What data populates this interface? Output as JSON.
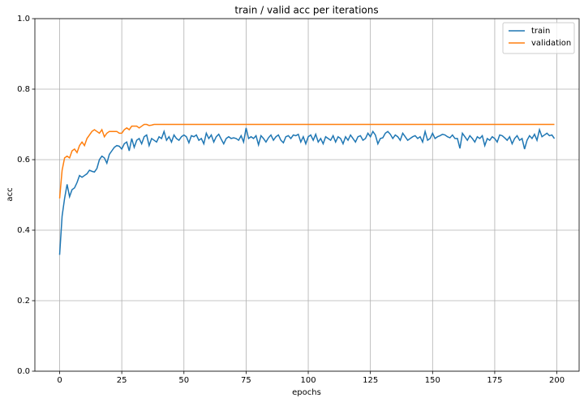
{
  "chart_data": {
    "type": "line",
    "title": "train / valid acc per iterations",
    "xlabel": "epochs",
    "ylabel": "acc",
    "x": [
      0,
      1,
      2,
      3,
      4,
      5,
      6,
      7,
      8,
      9,
      10,
      11,
      12,
      13,
      14,
      15,
      16,
      17,
      18,
      19,
      20,
      21,
      22,
      23,
      24,
      25,
      26,
      27,
      28,
      29,
      30,
      31,
      32,
      33,
      34,
      35,
      36,
      37,
      38,
      39,
      40,
      41,
      42,
      43,
      44,
      45,
      46,
      47,
      48,
      49,
      50,
      51,
      52,
      53,
      54,
      55,
      56,
      57,
      58,
      59,
      60,
      61,
      62,
      63,
      64,
      65,
      66,
      67,
      68,
      69,
      70,
      71,
      72,
      73,
      74,
      75,
      76,
      77,
      78,
      79,
      80,
      81,
      82,
      83,
      84,
      85,
      86,
      87,
      88,
      89,
      90,
      91,
      92,
      93,
      94,
      95,
      96,
      97,
      98,
      99,
      100,
      101,
      102,
      103,
      104,
      105,
      106,
      107,
      108,
      109,
      110,
      111,
      112,
      113,
      114,
      115,
      116,
      117,
      118,
      119,
      120,
      121,
      122,
      123,
      124,
      125,
      126,
      127,
      128,
      129,
      130,
      131,
      132,
      133,
      134,
      135,
      136,
      137,
      138,
      139,
      140,
      141,
      142,
      143,
      144,
      145,
      146,
      147,
      148,
      149,
      150,
      151,
      152,
      153,
      154,
      155,
      156,
      157,
      158,
      159,
      160,
      161,
      162,
      163,
      164,
      165,
      166,
      167,
      168,
      169,
      170,
      171,
      172,
      173,
      174,
      175,
      176,
      177,
      178,
      179,
      180,
      181,
      182,
      183,
      184,
      185,
      186,
      187,
      188,
      189,
      190,
      191,
      192,
      193,
      194,
      195,
      196,
      197,
      198,
      199
    ],
    "series": [
      {
        "name": "train",
        "color": "#1f77b4",
        "values": [
          0.33,
          0.44,
          0.49,
          0.53,
          0.495,
          0.515,
          0.52,
          0.535,
          0.555,
          0.55,
          0.555,
          0.56,
          0.57,
          0.567,
          0.565,
          0.575,
          0.6,
          0.61,
          0.605,
          0.59,
          0.615,
          0.625,
          0.635,
          0.64,
          0.638,
          0.63,
          0.645,
          0.65,
          0.625,
          0.66,
          0.635,
          0.655,
          0.66,
          0.645,
          0.665,
          0.67,
          0.64,
          0.66,
          0.655,
          0.65,
          0.665,
          0.66,
          0.68,
          0.655,
          0.665,
          0.65,
          0.67,
          0.66,
          0.655,
          0.665,
          0.67,
          0.665,
          0.648,
          0.668,
          0.665,
          0.67,
          0.655,
          0.66,
          0.645,
          0.675,
          0.66,
          0.67,
          0.65,
          0.665,
          0.672,
          0.658,
          0.645,
          0.66,
          0.665,
          0.66,
          0.662,
          0.66,
          0.655,
          0.668,
          0.65,
          0.69,
          0.66,
          0.665,
          0.66,
          0.668,
          0.642,
          0.668,
          0.66,
          0.65,
          0.662,
          0.67,
          0.655,
          0.665,
          0.67,
          0.655,
          0.648,
          0.665,
          0.668,
          0.66,
          0.67,
          0.668,
          0.672,
          0.65,
          0.665,
          0.645,
          0.665,
          0.67,
          0.655,
          0.672,
          0.65,
          0.66,
          0.645,
          0.665,
          0.66,
          0.655,
          0.668,
          0.65,
          0.665,
          0.66,
          0.645,
          0.665,
          0.655,
          0.67,
          0.66,
          0.65,
          0.665,
          0.668,
          0.655,
          0.66,
          0.675,
          0.665,
          0.68,
          0.67,
          0.645,
          0.66,
          0.662,
          0.675,
          0.68,
          0.672,
          0.66,
          0.67,
          0.665,
          0.655,
          0.675,
          0.665,
          0.655,
          0.66,
          0.665,
          0.668,
          0.66,
          0.665,
          0.65,
          0.68,
          0.655,
          0.66,
          0.675,
          0.66,
          0.665,
          0.668,
          0.672,
          0.67,
          0.665,
          0.662,
          0.67,
          0.66,
          0.66,
          0.632,
          0.675,
          0.665,
          0.655,
          0.668,
          0.66,
          0.65,
          0.665,
          0.66,
          0.668,
          0.64,
          0.66,
          0.655,
          0.665,
          0.66,
          0.65,
          0.67,
          0.668,
          0.662,
          0.655,
          0.665,
          0.645,
          0.66,
          0.668,
          0.655,
          0.66,
          0.63,
          0.655,
          0.668,
          0.66,
          0.672,
          0.655,
          0.685,
          0.665,
          0.67,
          0.675,
          0.668,
          0.67,
          0.66
        ]
      },
      {
        "name": "validation",
        "color": "#ff7f0e",
        "values": [
          0.49,
          0.57,
          0.605,
          0.61,
          0.605,
          0.625,
          0.63,
          0.62,
          0.64,
          0.65,
          0.64,
          0.66,
          0.67,
          0.68,
          0.685,
          0.68,
          0.675,
          0.685,
          0.665,
          0.675,
          0.68,
          0.68,
          0.68,
          0.68,
          0.675,
          0.675,
          0.685,
          0.69,
          0.685,
          0.695,
          0.695,
          0.695,
          0.69,
          0.695,
          0.7,
          0.7,
          0.697,
          0.698,
          0.7,
          0.7,
          0.7,
          0.7,
          0.7,
          0.7,
          0.7,
          0.7,
          0.7,
          0.7,
          0.7,
          0.7,
          0.7,
          0.7,
          0.7,
          0.7,
          0.7,
          0.7,
          0.7,
          0.7,
          0.7,
          0.7,
          0.7,
          0.7,
          0.7,
          0.7,
          0.7,
          0.7,
          0.7,
          0.7,
          0.7,
          0.7,
          0.7,
          0.7,
          0.7,
          0.7,
          0.7,
          0.7,
          0.7,
          0.7,
          0.7,
          0.7,
          0.7,
          0.7,
          0.7,
          0.7,
          0.7,
          0.7,
          0.7,
          0.7,
          0.7,
          0.7,
          0.7,
          0.7,
          0.7,
          0.7,
          0.7,
          0.7,
          0.7,
          0.7,
          0.7,
          0.7,
          0.7,
          0.7,
          0.7,
          0.7,
          0.7,
          0.7,
          0.7,
          0.7,
          0.7,
          0.7,
          0.7,
          0.7,
          0.7,
          0.7,
          0.7,
          0.7,
          0.7,
          0.7,
          0.7,
          0.7,
          0.7,
          0.7,
          0.7,
          0.7,
          0.7,
          0.7,
          0.7,
          0.7,
          0.7,
          0.7,
          0.7,
          0.7,
          0.7,
          0.7,
          0.7,
          0.7,
          0.7,
          0.7,
          0.7,
          0.7,
          0.7,
          0.7,
          0.7,
          0.7,
          0.7,
          0.7,
          0.7,
          0.7,
          0.7,
          0.7,
          0.7,
          0.7,
          0.7,
          0.7,
          0.7,
          0.7,
          0.7,
          0.7,
          0.7,
          0.7,
          0.7,
          0.7,
          0.7,
          0.7,
          0.7,
          0.7,
          0.7,
          0.7,
          0.7,
          0.7,
          0.7,
          0.7,
          0.7,
          0.7,
          0.7,
          0.7,
          0.7,
          0.7,
          0.7,
          0.7,
          0.7,
          0.7,
          0.7,
          0.7,
          0.7,
          0.7,
          0.7,
          0.7,
          0.7,
          0.7,
          0.7,
          0.7,
          0.7,
          0.7,
          0.7,
          0.7,
          0.7,
          0.7,
          0.7,
          0.7
        ]
      }
    ],
    "xlim": [
      -9.95,
      208.95
    ],
    "xticks": [
      0,
      25,
      50,
      75,
      100,
      125,
      150,
      175,
      200
    ],
    "ylim": [
      0,
      1
    ],
    "yticks": [
      {
        "value": 0,
        "label": "0.0"
      },
      0.2,
      0.4,
      0.6,
      0.8,
      {
        "value": 1,
        "label": "1.0"
      }
    ],
    "grid": true,
    "legend": "upper right"
  }
}
